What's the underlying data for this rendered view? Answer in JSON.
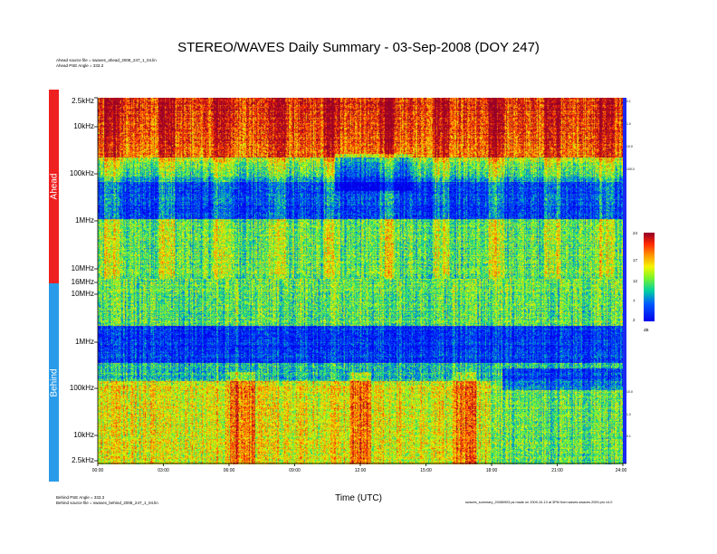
{
  "chart_data": {
    "type": "heatmap",
    "title": "STEREO/WAVES Daily Summary - 03-Sep-2008 (DOY 247)",
    "xlabel": "Time (UTC)",
    "x_ticks": [
      "00:00",
      "03:00",
      "06:00",
      "09:00",
      "12:00",
      "15:00",
      "18:00",
      "21:00",
      "24:00"
    ],
    "xlim": [
      "00:00",
      "24:00"
    ],
    "panels": [
      {
        "name": "Ahead",
        "source_note": "Ahead source file = swaves_ahead_2008_247_1_04.lin",
        "angle_note": "Ahead PSE Angle = 333.3",
        "y_ticks": [
          "2.5kHz",
          "10kHz",
          "100kHz",
          "1MHz",
          "10MHz",
          "16MHz"
        ],
        "y_scale": "log",
        "right_ticks": [
          "0.1",
          "1.0",
          "10.0",
          "100.0"
        ]
      },
      {
        "name": "Behind",
        "angle_note": "Behind PSE Angle = 333.3",
        "source_note": "Behind source file = swaves_behind_2008_247_1_04.lin",
        "y_ticks": [
          "10MHz",
          "1MHz",
          "100kHz",
          "10kHz",
          "2.5kHz"
        ],
        "y_scale": "log",
        "right_ticks": [
          "10.0",
          "1.0",
          "0.1"
        ]
      }
    ],
    "colorbar": {
      "ticks": [
        "24",
        "17",
        "12",
        "7",
        "2"
      ],
      "unit": "dB",
      "range": [
        2,
        24
      ]
    },
    "footer_note": "swaves_summary_20080903.ps made on 2009-10-13 at 3PM from waves.swaves.2009.pro v4.0"
  },
  "colors": {
    "ahead_tag": "#ee2020",
    "behind_tag": "#2a9be8",
    "right_band": "#1c2aef"
  }
}
